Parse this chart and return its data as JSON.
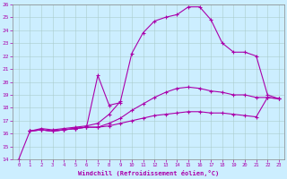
{
  "xlabel": "Windchill (Refroidissement éolien,°C)",
  "background_color": "#cceeff",
  "line_color": "#aa00aa",
  "marker": "+",
  "xlim": [
    -0.5,
    23.5
  ],
  "ylim": [
    14,
    26
  ],
  "xticks": [
    0,
    1,
    2,
    3,
    4,
    5,
    6,
    7,
    8,
    9,
    10,
    11,
    12,
    13,
    14,
    15,
    16,
    17,
    18,
    19,
    20,
    21,
    22,
    23
  ],
  "yticks": [
    14,
    15,
    16,
    17,
    18,
    19,
    20,
    21,
    22,
    23,
    24,
    25,
    26
  ],
  "grid_color": "#aacccc",
  "curves": [
    {
      "x": [
        0,
        1,
        2,
        3,
        4,
        5,
        6,
        7,
        8,
        9,
        10,
        11,
        12,
        13,
        14,
        15,
        16,
        17,
        18,
        19,
        20,
        21,
        22,
        23
      ],
      "y": [
        14.0,
        16.2,
        16.4,
        16.3,
        16.4,
        16.5,
        16.6,
        16.8,
        17.5,
        18.5,
        22.2,
        23.8,
        24.7,
        25.0,
        25.2,
        25.8,
        25.8,
        24.8,
        23.0,
        22.3,
        22.3,
        22.0,
        19.0,
        18.7
      ]
    },
    {
      "x": [
        1,
        2,
        3,
        4,
        5,
        6,
        7,
        8,
        9
      ],
      "y": [
        16.2,
        16.3,
        16.2,
        16.3,
        16.4,
        16.5,
        20.5,
        18.2,
        18.4
      ]
    },
    {
      "x": [
        1,
        2,
        3,
        4,
        5,
        6,
        7,
        8,
        9,
        10,
        11,
        12,
        13,
        14,
        15,
        16,
        17,
        18,
        19,
        20,
        21,
        22,
        23
      ],
      "y": [
        16.2,
        16.3,
        16.2,
        16.3,
        16.4,
        16.5,
        16.5,
        16.8,
        17.2,
        17.8,
        18.3,
        18.8,
        19.2,
        19.5,
        19.6,
        19.5,
        19.3,
        19.2,
        19.0,
        19.0,
        18.8,
        18.8,
        18.7
      ]
    },
    {
      "x": [
        1,
        2,
        3,
        4,
        5,
        6,
        7,
        8,
        9,
        10,
        11,
        12,
        13,
        14,
        15,
        16,
        17,
        18,
        19,
        20,
        21,
        22,
        23
      ],
      "y": [
        16.2,
        16.3,
        16.2,
        16.3,
        16.4,
        16.5,
        16.5,
        16.6,
        16.8,
        17.0,
        17.2,
        17.4,
        17.5,
        17.6,
        17.7,
        17.7,
        17.6,
        17.6,
        17.5,
        17.4,
        17.3,
        18.8,
        18.7
      ]
    }
  ]
}
